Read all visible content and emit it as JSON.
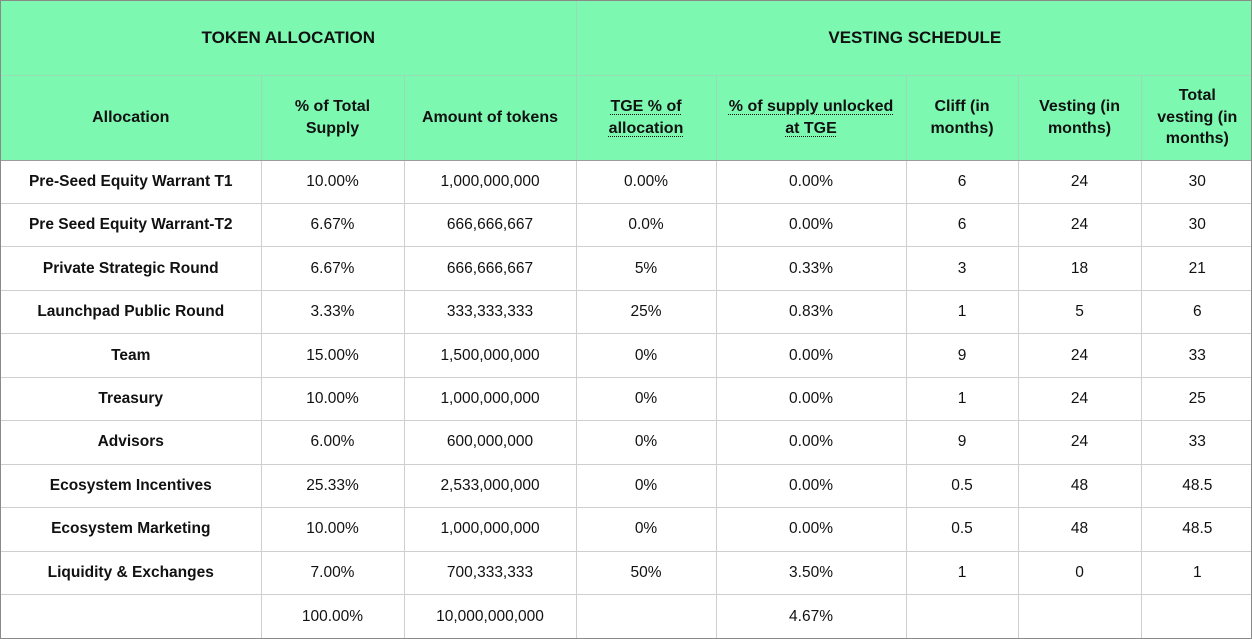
{
  "colors": {
    "header_green": "#7df8b1",
    "row_border": "#cfcfcf",
    "text": "#111111"
  },
  "table": {
    "group_headers": [
      {
        "label": "TOKEN ALLOCATION",
        "colspan": 3
      },
      {
        "label": "VESTING SCHEDULE",
        "colspan": 5
      }
    ],
    "columns": [
      {
        "label": "Allocation",
        "underline": false
      },
      {
        "label": "% of Total Supply",
        "underline": false
      },
      {
        "label": "Amount of tokens",
        "underline": false
      },
      {
        "label": "TGE % of allocation",
        "underline": true
      },
      {
        "label": "% of supply unlocked at TGE",
        "underline": true
      },
      {
        "label": "Cliff (in months)",
        "underline": false
      },
      {
        "label": "Vesting (in months)",
        "underline": false
      },
      {
        "label": "Total vesting (in months)",
        "underline": false
      }
    ],
    "rows": [
      [
        "Pre-Seed Equity Warrant T1",
        "10.00%",
        "1,000,000,000",
        "0.00%",
        "0.00%",
        "6",
        "24",
        "30"
      ],
      [
        "Pre Seed Equity Warrant-T2",
        "6.67%",
        "666,666,667",
        "0.0%",
        "0.00%",
        "6",
        "24",
        "30"
      ],
      [
        "Private Strategic Round",
        "6.67%",
        "666,666,667",
        "5%",
        "0.33%",
        "3",
        "18",
        "21"
      ],
      [
        "Launchpad Public Round",
        "3.33%",
        "333,333,333",
        "25%",
        "0.83%",
        "1",
        "5",
        "6"
      ],
      [
        "Team",
        "15.00%",
        "1,500,000,000",
        "0%",
        "0.00%",
        "9",
        "24",
        "33"
      ],
      [
        "Treasury",
        "10.00%",
        "1,000,000,000",
        "0%",
        "0.00%",
        "1",
        "24",
        "25"
      ],
      [
        "Advisors",
        "6.00%",
        "600,000,000",
        "0%",
        "0.00%",
        "9",
        "24",
        "33"
      ],
      [
        "Ecosystem Incentives",
        "25.33%",
        "2,533,000,000",
        "0%",
        "0.00%",
        "0.5",
        "48",
        "48.5"
      ],
      [
        "Ecosystem Marketing",
        "10.00%",
        "1,000,000,000",
        "0%",
        "0.00%",
        "0.5",
        "48",
        "48.5"
      ],
      [
        "Liquidity & Exchanges",
        "7.00%",
        "700,333,333",
        "50%",
        "3.50%",
        "1",
        "0",
        "1"
      ]
    ],
    "total_row": [
      "",
      "100.00%",
      "10,000,000,000",
      "",
      "4.67%",
      "",
      "",
      ""
    ]
  }
}
